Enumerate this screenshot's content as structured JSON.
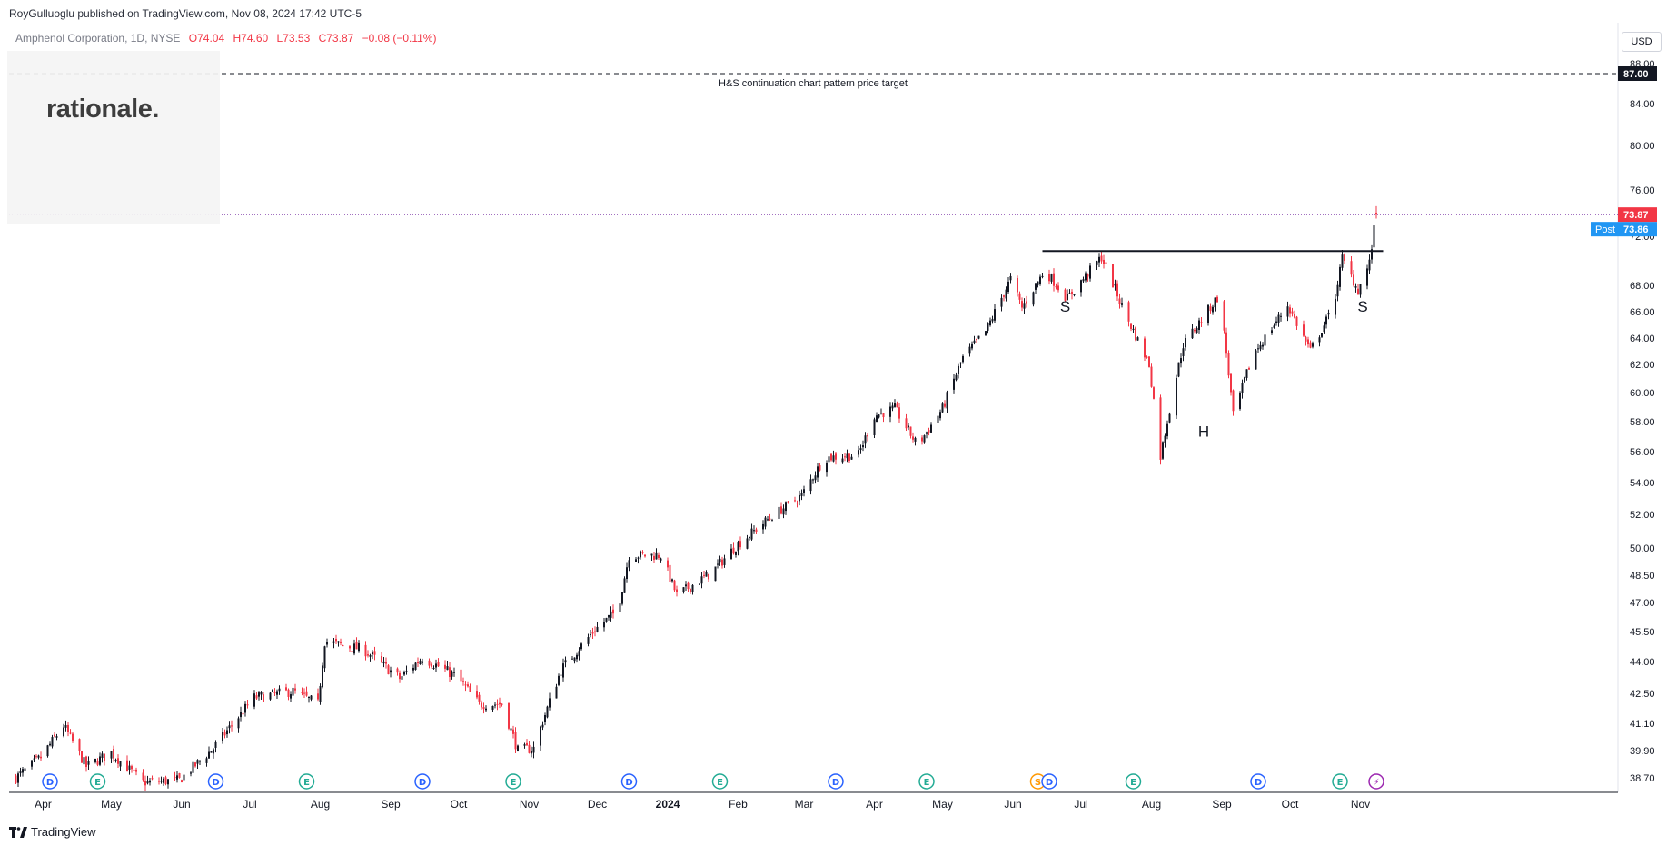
{
  "header": {
    "credit": "RoyGulluoglu published on TradingView.com, Nov 08, 2024 17:42 UTC-5",
    "symbol": "Amphenol Corporation, 1D, NYSE",
    "open": "O74.04",
    "high": "H74.60",
    "low": "L73.53",
    "close": "C73.87",
    "change": "−0.08 (−0.11%)"
  },
  "logo": "rationale.",
  "currency_button": "USD",
  "footer": "TradingView",
  "colors": {
    "up": "#131722",
    "down": "#f23645",
    "post": "#2196f3",
    "price_label": "#f23645",
    "target_label": "#131722"
  },
  "chart_data": {
    "type": "candlestick",
    "title": "Amphenol Corporation, 1D, NYSE",
    "ylabel": "USD",
    "y_ticks": [
      "88.00",
      "84.00",
      "80.00",
      "76.00",
      "72.00",
      "68.00",
      "66.00",
      "64.00",
      "62.00",
      "60.00",
      "58.00",
      "56.00",
      "54.00",
      "52.00",
      "50.00",
      "48.50",
      "47.00",
      "45.50",
      "44.00",
      "42.50",
      "41.10",
      "39.90",
      "38.70"
    ],
    "x_labels": [
      "Apr",
      "May",
      "Jun",
      "Jul",
      "Aug",
      "Sep",
      "Oct",
      "Nov",
      "Dec",
      "2024",
      "Feb",
      "Mar",
      "Apr",
      "May",
      "Jun",
      "Jul",
      "Aug",
      "Sep",
      "Oct",
      "Nov"
    ],
    "price_path": [
      [
        "2023-03-20",
        38.7
      ],
      [
        "2023-03-31",
        39.6
      ],
      [
        "2023-04-10",
        41.0
      ],
      [
        "2023-04-20",
        39.2
      ],
      [
        "2023-05-01",
        39.8
      ],
      [
        "2023-05-15",
        38.5
      ],
      [
        "2023-05-31",
        38.6
      ],
      [
        "2023-06-15",
        40.0
      ],
      [
        "2023-07-03",
        42.3
      ],
      [
        "2023-07-20",
        42.6
      ],
      [
        "2023-07-31",
        42.0
      ],
      [
        "2023-08-03",
        45.0
      ],
      [
        "2023-08-20",
        44.6
      ],
      [
        "2023-09-05",
        43.2
      ],
      [
        "2023-09-15",
        44.2
      ],
      [
        "2023-09-30",
        43.3
      ],
      [
        "2023-10-10",
        42.0
      ],
      [
        "2023-10-20",
        42.0
      ],
      [
        "2023-10-27",
        39.9
      ],
      [
        "2023-11-03",
        40.0
      ],
      [
        "2023-11-15",
        43.6
      ],
      [
        "2023-11-30",
        45.6
      ],
      [
        "2023-12-10",
        46.6
      ],
      [
        "2023-12-15",
        49.6
      ],
      [
        "2023-12-29",
        49.6
      ],
      [
        "2024-01-05",
        47.4
      ],
      [
        "2024-01-20",
        48.6
      ],
      [
        "2024-01-31",
        50.1
      ],
      [
        "2024-02-15",
        51.8
      ],
      [
        "2024-02-29",
        53.2
      ],
      [
        "2024-03-10",
        55.6
      ],
      [
        "2024-03-25",
        55.8
      ],
      [
        "2024-04-01",
        58.4
      ],
      [
        "2024-04-10",
        58.9
      ],
      [
        "2024-04-20",
        56.4
      ],
      [
        "2024-05-01",
        58.9
      ],
      [
        "2024-05-10",
        62.5
      ],
      [
        "2024-05-20",
        64.5
      ],
      [
        "2024-05-31",
        68.5
      ],
      [
        "2024-06-05",
        66.3
      ],
      [
        "2024-06-15",
        69.2
      ],
      [
        "2024-06-25",
        67.0
      ],
      [
        "2024-07-10",
        70.3
      ],
      [
        "2024-07-20",
        66.0
      ],
      [
        "2024-07-31",
        62.0
      ],
      [
        "2024-08-05",
        55.7
      ],
      [
        "2024-08-15",
        63.5
      ],
      [
        "2024-08-31",
        67.3
      ],
      [
        "2024-09-06",
        58.4
      ],
      [
        "2024-09-15",
        62.8
      ],
      [
        "2024-09-30",
        66.5
      ],
      [
        "2024-10-10",
        63.0
      ],
      [
        "2024-10-20",
        66.3
      ],
      [
        "2024-10-24",
        70.2
      ],
      [
        "2024-10-31",
        67.6
      ],
      [
        "2024-11-05",
        69.8
      ],
      [
        "2024-11-08",
        73.87
      ]
    ],
    "last_price": "73.87",
    "post_label": "Post",
    "post_price": "73.86",
    "target_level": 87.0,
    "target_label": "87.00",
    "target_annotation": "H&S continuation chart pattern price target",
    "neckline": {
      "from": "2024-06-14",
      "to": "2024-11-11",
      "y": 70.8
    },
    "pattern_labels": [
      {
        "text": "S",
        "date": "2024-06-24",
        "y": 66.0
      },
      {
        "text": "H",
        "date": "2024-08-24",
        "y": 57.0
      },
      {
        "text": "S",
        "date": "2024-11-02",
        "y": 66.0
      }
    ],
    "events": [
      {
        "type": "D",
        "date": "2023-04-04"
      },
      {
        "type": "E",
        "date": "2023-04-25"
      },
      {
        "type": "D",
        "date": "2023-06-16"
      },
      {
        "type": "E",
        "date": "2023-07-26"
      },
      {
        "type": "D",
        "date": "2023-09-15"
      },
      {
        "type": "E",
        "date": "2023-10-25"
      },
      {
        "type": "D",
        "date": "2023-12-15"
      },
      {
        "type": "E",
        "date": "2024-01-24"
      },
      {
        "type": "D",
        "date": "2024-03-15"
      },
      {
        "type": "E",
        "date": "2024-04-24"
      },
      {
        "type": "S",
        "date": "2024-06-12"
      },
      {
        "type": "D",
        "date": "2024-06-17"
      },
      {
        "type": "E",
        "date": "2024-07-24"
      },
      {
        "type": "D",
        "date": "2024-09-17"
      },
      {
        "type": "E",
        "date": "2024-10-23"
      },
      {
        "type": "⚡",
        "date": "2024-11-08"
      }
    ]
  }
}
